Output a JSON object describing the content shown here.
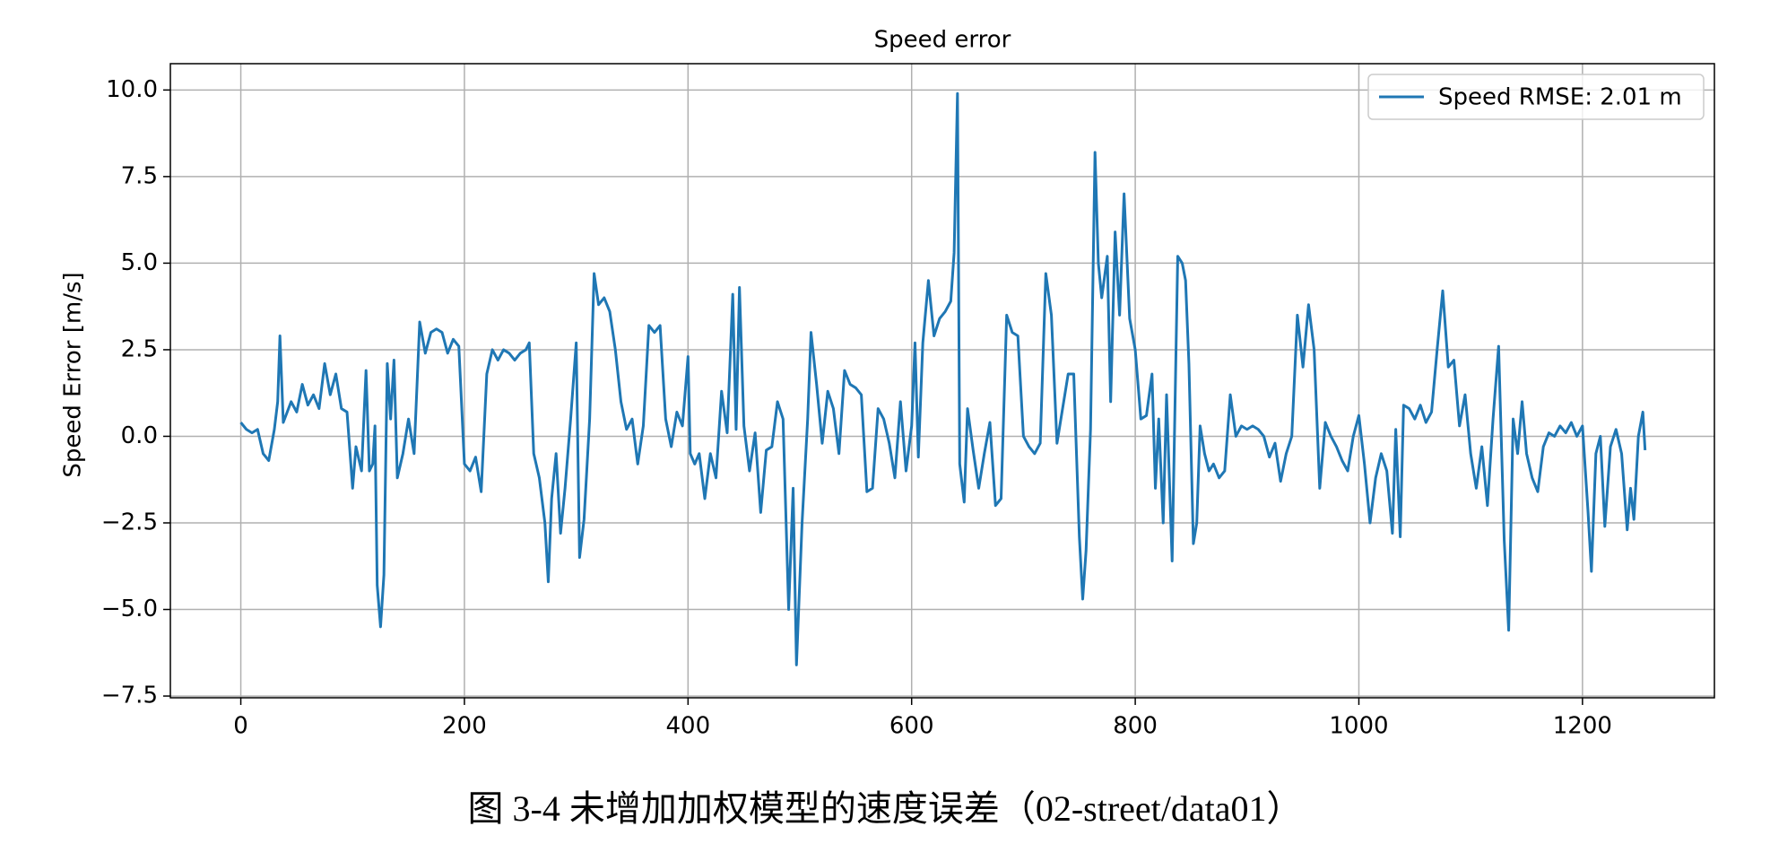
{
  "chart_data": {
    "type": "line",
    "title": "Speed error",
    "ylabel": "Speed Error [m/s]",
    "caption": "图 3-4  未增加加权模型的速度误差（02-street/data01）",
    "xlim": [
      -63,
      1318
    ],
    "ylim": [
      -7.55,
      10.76
    ],
    "xticks": [
      0,
      200,
      400,
      600,
      800,
      1000,
      1200
    ],
    "yticks": [
      {
        "value": -7.5,
        "label": "−7.5"
      },
      {
        "value": -5,
        "label": "−5.0"
      },
      {
        "value": -2.5,
        "label": "−2.5"
      },
      {
        "value": 0,
        "label": "0.0"
      },
      2.5,
      {
        "value": 5,
        "label": "5.0"
      },
      {
        "value": 7.5,
        "label": "7.5"
      },
      {
        "value": 10,
        "label": "10.0"
      }
    ],
    "grid": true,
    "legend": "upper right",
    "x": [
      0,
      5,
      10,
      15,
      20,
      25,
      30,
      33,
      35,
      38,
      45,
      50,
      55,
      60,
      65,
      70,
      75,
      80,
      85,
      90,
      95,
      100,
      103,
      108,
      112,
      115,
      118,
      120,
      122,
      125,
      128,
      131,
      134,
      137,
      140,
      145,
      150,
      155,
      160,
      165,
      170,
      175,
      180,
      185,
      190,
      195,
      200,
      205,
      210,
      215,
      220,
      225,
      230,
      235,
      240,
      245,
      250,
      255,
      258,
      262,
      267,
      272,
      275,
      278,
      282,
      286,
      290,
      295,
      300,
      303,
      307,
      312,
      316,
      320,
      325,
      330,
      335,
      340,
      345,
      350,
      355,
      360,
      365,
      370,
      375,
      380,
      385,
      390,
      395,
      400,
      402,
      406,
      410,
      415,
      420,
      425,
      430,
      435,
      440,
      443,
      446,
      450,
      455,
      460,
      465,
      470,
      475,
      480,
      485,
      490,
      494,
      497,
      502,
      507,
      510,
      515,
      520,
      525,
      530,
      535,
      540,
      545,
      550,
      555,
      560,
      565,
      570,
      575,
      580,
      585,
      590,
      595,
      600,
      603,
      606,
      610,
      615,
      620,
      625,
      630,
      635,
      638,
      641,
      643,
      647,
      650,
      655,
      660,
      665,
      670,
      675,
      680,
      685,
      690,
      695,
      700,
      705,
      710,
      715,
      720,
      725,
      730,
      735,
      740,
      745,
      750,
      753,
      756,
      760,
      764,
      767,
      770,
      775,
      778,
      782,
      786,
      790,
      795,
      800,
      805,
      810,
      815,
      818,
      821,
      825,
      828,
      833,
      838,
      842,
      845,
      848,
      852,
      855,
      858,
      862,
      866,
      870,
      875,
      880,
      885,
      890,
      895,
      900,
      905,
      910,
      915,
      920,
      925,
      930,
      935,
      940,
      945,
      950,
      955,
      960,
      965,
      970,
      975,
      980,
      985,
      990,
      995,
      1000,
      1005,
      1010,
      1015,
      1020,
      1025,
      1030,
      1033,
      1037,
      1040,
      1045,
      1050,
      1055,
      1060,
      1065,
      1070,
      1075,
      1080,
      1085,
      1090,
      1095,
      1100,
      1105,
      1110,
      1115,
      1120,
      1125,
      1130,
      1134,
      1138,
      1142,
      1146,
      1150,
      1155,
      1160,
      1165,
      1170,
      1175,
      1180,
      1185,
      1190,
      1195,
      1200,
      1205,
      1208,
      1212,
      1216,
      1220,
      1225,
      1230,
      1235,
      1240,
      1243,
      1246,
      1250,
      1254,
      1256
    ],
    "series": [
      {
        "name": "Speed RMSE: 2.01 m",
        "color": "#1f77b4",
        "values": [
          0.4,
          0.2,
          0.1,
          0.2,
          -0.5,
          -0.7,
          0.2,
          1.0,
          2.9,
          0.4,
          1.0,
          0.7,
          1.5,
          0.9,
          1.2,
          0.8,
          2.1,
          1.2,
          1.8,
          0.8,
          0.7,
          -1.5,
          -0.3,
          -1.0,
          1.9,
          -1.0,
          -0.8,
          0.3,
          -4.3,
          -5.5,
          -4.0,
          2.1,
          0.5,
          2.2,
          -1.2,
          -0.5,
          0.5,
          -0.5,
          3.3,
          2.4,
          3.0,
          3.1,
          3.0,
          2.4,
          2.8,
          2.6,
          -0.8,
          -1.0,
          -0.6,
          -1.6,
          1.8,
          2.5,
          2.2,
          2.5,
          2.4,
          2.2,
          2.4,
          2.5,
          2.7,
          -0.5,
          -1.2,
          -2.5,
          -4.2,
          -1.8,
          -0.5,
          -2.8,
          -1.5,
          0.5,
          2.7,
          -3.5,
          -2.4,
          0.5,
          4.7,
          3.8,
          4.0,
          3.6,
          2.5,
          1.0,
          0.2,
          0.5,
          -0.8,
          0.3,
          3.2,
          3.0,
          3.2,
          0.5,
          -0.3,
          0.7,
          0.3,
          2.3,
          -0.5,
          -0.8,
          -0.5,
          -1.8,
          -0.5,
          -1.2,
          1.3,
          0.1,
          4.1,
          0.2,
          4.3,
          0.3,
          -1.0,
          0.1,
          -2.2,
          -0.4,
          -0.3,
          1.0,
          0.5,
          -5.0,
          -1.5,
          -6.6,
          -2.5,
          0.5,
          3.0,
          1.5,
          -0.2,
          1.3,
          0.8,
          -0.5,
          1.9,
          1.5,
          1.4,
          1.2,
          -1.6,
          -1.5,
          0.8,
          0.5,
          -0.2,
          -1.2,
          1.0,
          -1.0,
          0.3,
          2.7,
          -0.6,
          2.7,
          4.5,
          2.9,
          3.4,
          3.6,
          3.9,
          5.3,
          9.9,
          -0.8,
          -1.9,
          0.8,
          -0.4,
          -1.5,
          -0.5,
          0.4,
          -2.0,
          -1.8,
          3.5,
          3.0,
          2.9,
          0.0,
          -0.3,
          -0.5,
          -0.2,
          4.7,
          3.5,
          -0.2,
          0.8,
          1.8,
          1.8,
          -2.9,
          -4.7,
          -3.3,
          0.2,
          8.2,
          5.0,
          4.0,
          5.2,
          1.0,
          5.9,
          3.5,
          7.0,
          3.4,
          2.5,
          0.5,
          0.6,
          1.8,
          -1.5,
          0.5,
          -2.5,
          1.2,
          -3.6,
          5.2,
          5.0,
          4.5,
          2.1,
          -3.1,
          -2.5,
          0.3,
          -0.5,
          -1.0,
          -0.8,
          -1.2,
          -1.0,
          1.2,
          0.0,
          0.3,
          0.2,
          0.3,
          0.2,
          0.0,
          -0.6,
          -0.2,
          -1.3,
          -0.5,
          0.0,
          3.5,
          2.0,
          3.8,
          2.5,
          -1.5,
          0.4,
          0.0,
          -0.3,
          -0.7,
          -1.0,
          0.0,
          0.6,
          -0.8,
          -2.5,
          -1.2,
          -0.5,
          -1.0,
          -2.8,
          0.2,
          -2.9,
          0.9,
          0.8,
          0.5,
          0.9,
          0.4,
          0.7,
          2.5,
          4.2,
          2.0,
          2.2,
          0.3,
          1.2,
          -0.5,
          -1.5,
          -0.3,
          -2.0,
          0.5,
          2.6,
          -3.0,
          -5.6,
          0.5,
          -0.5,
          1.0,
          -0.5,
          -1.2,
          -1.6,
          -0.3,
          0.1,
          0.0,
          0.3,
          0.1,
          0.4,
          0.0,
          0.3,
          -2.2,
          -3.9,
          -0.5,
          0.0,
          -2.6,
          -0.3,
          0.2,
          -0.5,
          -2.7,
          -1.5,
          -2.4,
          0.0,
          0.7,
          -0.4
        ]
      }
    ]
  }
}
